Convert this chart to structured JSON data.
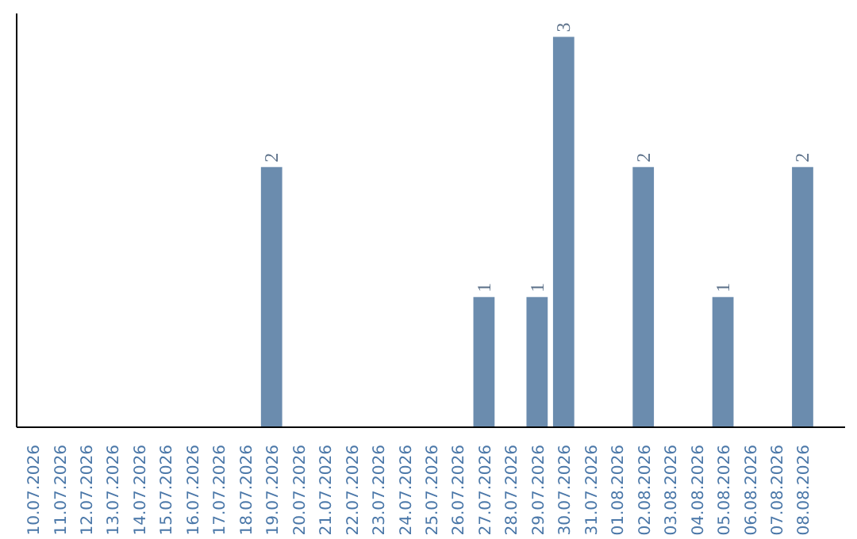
{
  "chart_data": {
    "type": "bar",
    "categories": [
      "10.07.2026",
      "11.07.2026",
      "12.07.2026",
      "13.07.2026",
      "14.07.2026",
      "15.07.2026",
      "16.07.2026",
      "17.07.2026",
      "18.07.2026",
      "19.07.2026",
      "20.07.2026",
      "21.07.2026",
      "22.07.2026",
      "23.07.2026",
      "24.07.2026",
      "25.07.2026",
      "26.07.2026",
      "27.07.2026",
      "28.07.2026",
      "29.07.2026",
      "30.07.2026",
      "31.07.2026",
      "01.08.2026",
      "02.08.2026",
      "03.08.2026",
      "04.08.2026",
      "05.08.2026",
      "06.08.2026",
      "07.08.2026",
      "08.08.2026"
    ],
    "values": [
      0,
      0,
      0,
      0,
      0,
      0,
      0,
      0,
      0,
      2,
      0,
      0,
      0,
      0,
      0,
      0,
      0,
      1,
      0,
      1,
      3,
      0,
      0,
      2,
      0,
      0,
      1,
      0,
      0,
      2
    ],
    "value_labels": [
      null,
      null,
      null,
      null,
      null,
      null,
      null,
      null,
      null,
      "2",
      null,
      null,
      null,
      null,
      null,
      null,
      null,
      "1",
      null,
      "1",
      "3",
      null,
      null,
      "2",
      null,
      null,
      "1",
      null,
      null,
      "2"
    ],
    "color": "#6b8cae",
    "tick_labels": "x",
    "grid": false
  }
}
